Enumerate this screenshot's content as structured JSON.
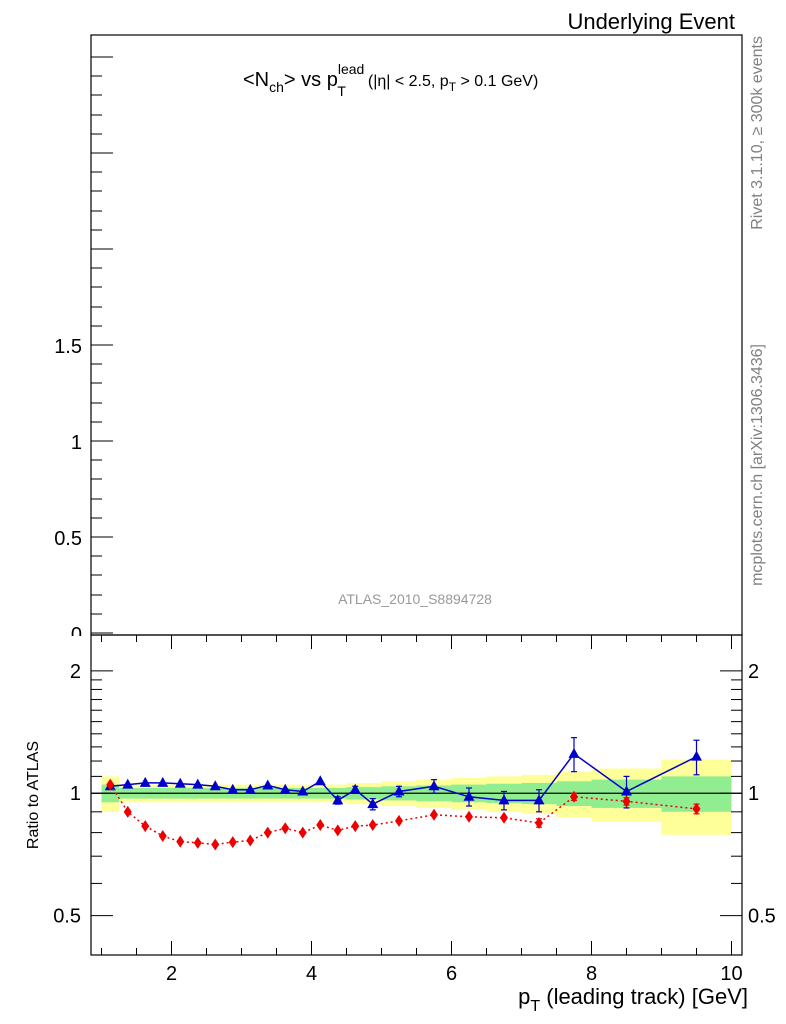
{
  "header": {
    "event_label": "Underlying Event",
    "side_top": "Rivet 3.1.10, ≥ 300k events",
    "side_bottom": "mcplots.cern.ch [arXiv:1306.3436]"
  },
  "main_panel": {
    "title": "<N",
    "title_sub_ch": "ch",
    "title_vs": "> vs p",
    "title_sup": "lead",
    "title_sub_T": "T",
    "title_cut": "(|η| < 2.5, p",
    "title_cut_sub": "T",
    "title_cut_end": " > 0.1 GeV)",
    "watermark": "ATLAS_2010_S8894728",
    "y_ticks": [
      "1.5",
      "1",
      "0.5",
      "0"
    ]
  },
  "chart_data": [
    {
      "type": "line",
      "panel": "ratio",
      "xlabel": "p_T (leading track) [GeV]",
      "ylabel": "Ratio to ATLAS",
      "xlim": [
        0.85,
        10.15
      ],
      "ylim": [
        0.4,
        2.45
      ],
      "y_log": true,
      "x_ticks": [
        "2",
        "4",
        "6",
        "8",
        "10"
      ],
      "y_ticks": [
        "0.5",
        "1",
        "2"
      ],
      "reference_line": 1,
      "bins": [
        {
          "lo": 1.0,
          "hi": 1.25,
          "g": 0.05,
          "y": 0.1
        },
        {
          "lo": 1.25,
          "hi": 1.5,
          "g": 0.03,
          "y": 0.05
        },
        {
          "lo": 1.5,
          "hi": 1.75,
          "g": 0.03,
          "y": 0.05
        },
        {
          "lo": 1.75,
          "hi": 2.0,
          "g": 0.03,
          "y": 0.05
        },
        {
          "lo": 2.0,
          "hi": 2.25,
          "g": 0.03,
          "y": 0.05
        },
        {
          "lo": 2.25,
          "hi": 2.5,
          "g": 0.03,
          "y": 0.05
        },
        {
          "lo": 2.5,
          "hi": 2.75,
          "g": 0.03,
          "y": 0.05
        },
        {
          "lo": 2.75,
          "hi": 3.0,
          "g": 0.03,
          "y": 0.05
        },
        {
          "lo": 3.0,
          "hi": 3.25,
          "g": 0.03,
          "y": 0.05
        },
        {
          "lo": 3.25,
          "hi": 3.5,
          "g": 0.03,
          "y": 0.05
        },
        {
          "lo": 3.5,
          "hi": 3.75,
          "g": 0.03,
          "y": 0.05
        },
        {
          "lo": 3.75,
          "hi": 4.0,
          "g": 0.03,
          "y": 0.05
        },
        {
          "lo": 4.0,
          "hi": 4.25,
          "g": 0.03,
          "y": 0.05
        },
        {
          "lo": 4.25,
          "hi": 4.5,
          "g": 0.03,
          "y": 0.05
        },
        {
          "lo": 4.5,
          "hi": 4.75,
          "g": 0.035,
          "y": 0.06
        },
        {
          "lo": 4.75,
          "hi": 5.0,
          "g": 0.035,
          "y": 0.06
        },
        {
          "lo": 5.0,
          "hi": 5.5,
          "g": 0.04,
          "y": 0.07
        },
        {
          "lo": 5.5,
          "hi": 6.0,
          "g": 0.045,
          "y": 0.08
        },
        {
          "lo": 6.0,
          "hi": 6.5,
          "g": 0.05,
          "y": 0.09
        },
        {
          "lo": 6.5,
          "hi": 7.0,
          "g": 0.055,
          "y": 0.1
        },
        {
          "lo": 7.0,
          "hi": 7.5,
          "g": 0.06,
          "y": 0.11
        },
        {
          "lo": 7.5,
          "hi": 8.0,
          "g": 0.07,
          "y": 0.13
        },
        {
          "lo": 8.0,
          "hi": 9.0,
          "g": 0.08,
          "y": 0.15
        },
        {
          "lo": 9.0,
          "hi": 10.0,
          "g": 0.1,
          "y": 0.21
        }
      ],
      "series": [
        {
          "color": "#0000cc",
          "marker": "triangle",
          "line": "solid",
          "x": [
            1.125,
            1.375,
            1.625,
            1.875,
            2.125,
            2.375,
            2.625,
            2.875,
            3.125,
            3.375,
            3.625,
            3.875,
            4.125,
            4.375,
            4.625,
            4.875,
            5.25,
            5.75,
            6.25,
            6.75,
            7.25,
            7.75,
            8.5,
            9.5
          ],
          "y": [
            1.04,
            1.05,
            1.06,
            1.06,
            1.055,
            1.05,
            1.04,
            1.02,
            1.02,
            1.045,
            1.02,
            1.01,
            1.07,
            0.96,
            1.02,
            0.94,
            1.01,
            1.04,
            0.98,
            0.96,
            0.96,
            1.25,
            1.01,
            1.23
          ],
          "err": [
            0.01,
            0.01,
            0.01,
            0.01,
            0.01,
            0.01,
            0.01,
            0.01,
            0.01,
            0.01,
            0.01,
            0.01,
            0.01,
            0.02,
            0.02,
            0.03,
            0.03,
            0.04,
            0.05,
            0.05,
            0.06,
            0.12,
            0.09,
            0.12
          ]
        },
        {
          "color": "#ee0000",
          "marker": "diamond",
          "line": "dotted",
          "x": [
            1.125,
            1.375,
            1.625,
            1.875,
            2.125,
            2.375,
            2.625,
            2.875,
            3.125,
            3.375,
            3.625,
            3.875,
            4.125,
            4.375,
            4.625,
            4.875,
            5.25,
            5.75,
            6.25,
            6.75,
            7.25,
            7.75,
            8.5,
            9.5
          ],
          "y": [
            1.05,
            0.9,
            0.83,
            0.785,
            0.76,
            0.755,
            0.748,
            0.758,
            0.765,
            0.8,
            0.82,
            0.8,
            0.835,
            0.81,
            0.83,
            0.835,
            0.855,
            0.885,
            0.875,
            0.87,
            0.845,
            0.98,
            0.955,
            0.915
          ],
          "err": [
            0.005,
            0.005,
            0.005,
            0.005,
            0.005,
            0.005,
            0.005,
            0.005,
            0.005,
            0.005,
            0.005,
            0.005,
            0.01,
            0.01,
            0.01,
            0.01,
            0.01,
            0.01,
            0.01,
            0.015,
            0.02,
            0.02,
            0.02,
            0.025
          ]
        }
      ]
    }
  ],
  "colors": {
    "band_inner": "#90ee90",
    "band_outer": "#ffff99",
    "series_1": "#0000cc",
    "series_2": "#ee0000",
    "side_text": "#808080"
  }
}
